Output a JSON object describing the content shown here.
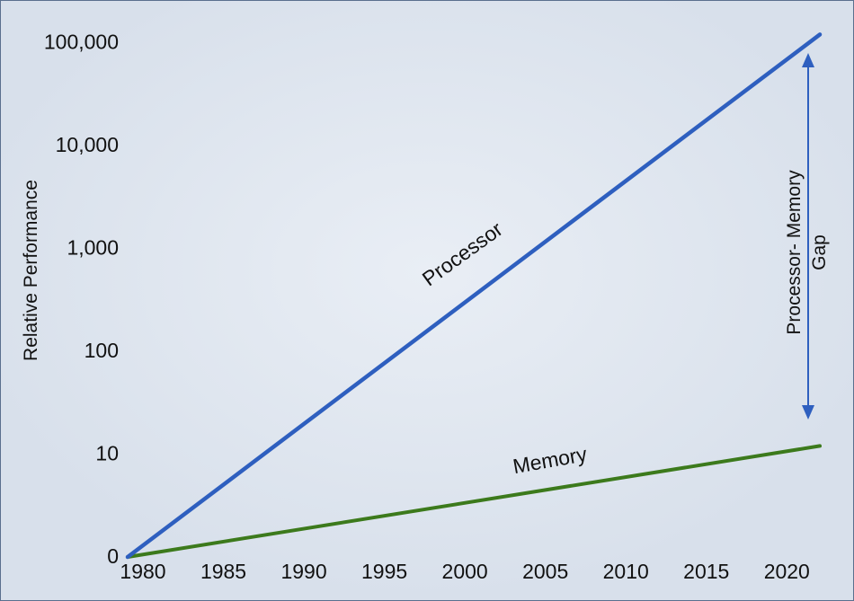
{
  "chart_data": {
    "type": "line",
    "title": "",
    "xlabel": "",
    "ylabel": "Relative Performance",
    "yscale": "log",
    "x_ticks": [
      "1980",
      "1985",
      "1990",
      "1995",
      "2000",
      "2005",
      "2010",
      "2015",
      "2020"
    ],
    "y_ticks": [
      "0",
      "10",
      "100",
      "1,000",
      "10,000",
      "100,000"
    ],
    "xlim": [
      1980,
      2023
    ],
    "series": [
      {
        "name": "Processor",
        "color": "#2e5fbf",
        "x": [
          1980,
          2023
        ],
        "y": [
          1,
          120000
        ]
      },
      {
        "name": "Memory",
        "color": "#3c7a1c",
        "x": [
          1980,
          2023
        ],
        "y": [
          1,
          12
        ]
      }
    ],
    "annotation": {
      "lines": [
        "Processor- Memory",
        "Gap"
      ],
      "arrow": "double-headed",
      "arrow_color": "#2e5fbf"
    },
    "grid": false,
    "background_color": "#dbe3ee"
  }
}
